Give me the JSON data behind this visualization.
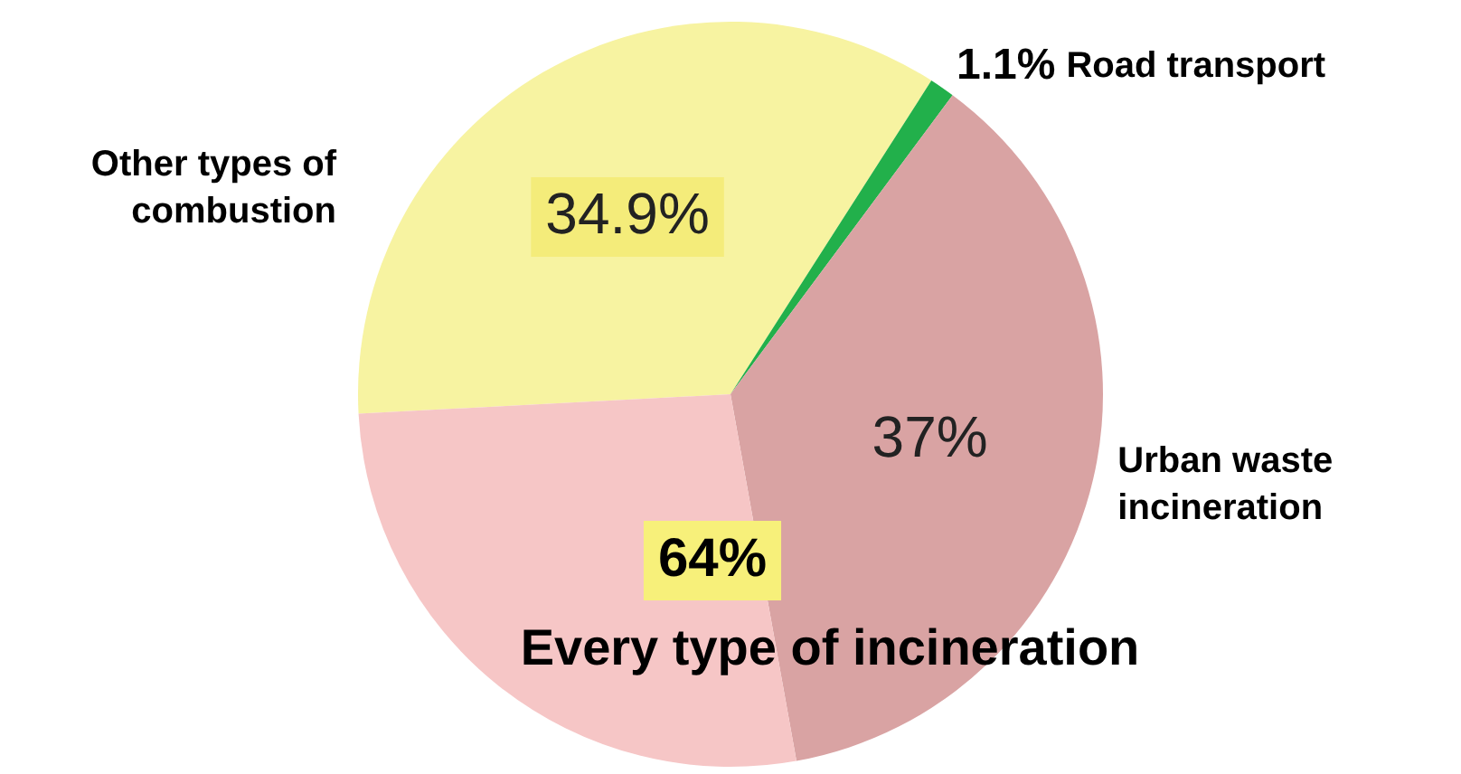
{
  "chart_data": {
    "type": "pie",
    "categories": [
      "Other types of combustion",
      "Road transport",
      "Urban waste incineration",
      null
    ],
    "values": [
      34.9,
      1.1,
      37,
      27
    ],
    "colors": [
      "#f7f3a1",
      "#22b04b",
      "#d9a3a3",
      "#f6c6c6"
    ],
    "value_labels": [
      "34.9%",
      "1.1%",
      "37%",
      null
    ],
    "annotations": [
      "64%",
      "Every type of incineration"
    ],
    "legend": false
  }
}
